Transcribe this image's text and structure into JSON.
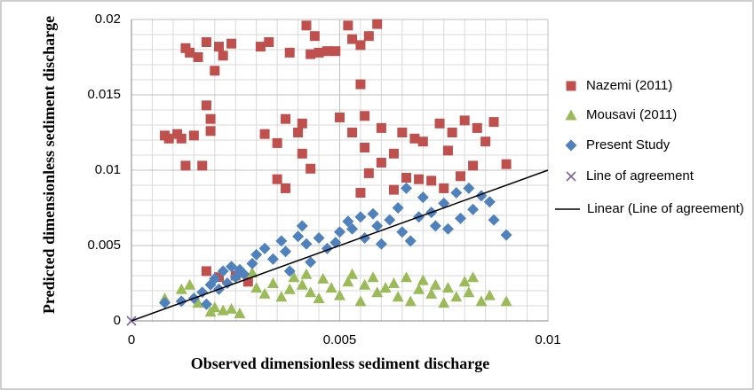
{
  "chart_data": {
    "type": "scatter",
    "x_label": "Observed dimensionless sediment discharge",
    "y_label": "Predicted dimensionless sediment discharge",
    "xlim": [
      0,
      0.01
    ],
    "ylim": [
      0,
      0.02
    ],
    "xticks": [
      0,
      0.005,
      0.01
    ],
    "yticks": [
      0,
      0.005,
      0.01,
      0.015,
      0.02
    ],
    "grid": true,
    "legend": "right",
    "series": [
      {
        "name": "Nazemi (2011)",
        "color": "#c0504d",
        "marker": "square",
        "x": [
          0.0008,
          0.0009,
          0.0011,
          0.0012,
          0.0013,
          0.0014,
          0.0013,
          0.0015,
          0.0016,
          0.0017,
          0.0018,
          0.0018,
          0.0019,
          0.0019,
          0.002,
          0.0021,
          0.0022,
          0.0024,
          0.0031,
          0.0032,
          0.0033,
          0.0035,
          0.0037,
          0.0037,
          0.0038,
          0.0035,
          0.004,
          0.0041,
          0.0041,
          0.0042,
          0.0043,
          0.0044,
          0.0043,
          0.0045,
          0.0047,
          0.0049,
          0.005,
          0.0052,
          0.0053,
          0.0053,
          0.0055,
          0.0055,
          0.0056,
          0.0056,
          0.0057,
          0.0057,
          0.0055,
          0.0059,
          0.006,
          0.006,
          0.0063,
          0.0063,
          0.0065,
          0.0066,
          0.0068,
          0.0069,
          0.007,
          0.0072,
          0.0074,
          0.0075,
          0.0076,
          0.0077,
          0.0079,
          0.008,
          0.0082,
          0.0083,
          0.0085,
          0.0087,
          0.009,
          0.0018,
          0.0021,
          0.0025,
          0.0028
        ],
        "values": [
          0.0123,
          0.0121,
          0.0124,
          0.0121,
          0.0181,
          0.0178,
          0.0103,
          0.0123,
          0.0175,
          0.0103,
          0.0185,
          0.0143,
          0.0134,
          0.0126,
          0.0166,
          0.0182,
          0.0176,
          0.0184,
          0.0182,
          0.0124,
          0.0185,
          0.0118,
          0.0134,
          0.0088,
          0.0178,
          0.0094,
          0.0125,
          0.0131,
          0.0111,
          0.0196,
          0.0177,
          0.0189,
          0.0101,
          0.0178,
          0.0179,
          0.0179,
          0.0135,
          0.0196,
          0.0187,
          0.0125,
          0.0183,
          0.0157,
          0.0136,
          0.0115,
          0.0189,
          0.0098,
          0.0085,
          0.0197,
          0.0128,
          0.0105,
          0.0087,
          0.0111,
          0.0125,
          0.0095,
          0.0121,
          0.0094,
          0.0119,
          0.0093,
          0.0131,
          0.0088,
          0.0113,
          0.0125,
          0.0096,
          0.0133,
          0.0103,
          0.0128,
          0.0119,
          0.0132,
          0.0104,
          0.0033,
          0.0029,
          0.003,
          0.0026
        ]
      },
      {
        "name": "Mousavi (2011)",
        "color": "#9bbb59",
        "marker": "triangle",
        "x": [
          0.0008,
          0.0012,
          0.0014,
          0.0016,
          0.0019,
          0.002,
          0.0022,
          0.0024,
          0.0026,
          0.0029,
          0.003,
          0.0032,
          0.0034,
          0.0036,
          0.0038,
          0.0039,
          0.0041,
          0.0042,
          0.0043,
          0.0045,
          0.0046,
          0.0048,
          0.005,
          0.0052,
          0.0053,
          0.0055,
          0.0056,
          0.0058,
          0.0059,
          0.0061,
          0.0063,
          0.0064,
          0.0066,
          0.0067,
          0.0069,
          0.007,
          0.0072,
          0.0073,
          0.0075,
          0.0076,
          0.0078,
          0.008,
          0.0081,
          0.0082,
          0.0084,
          0.0086,
          0.009
        ],
        "values": [
          0.0015,
          0.0021,
          0.0024,
          0.0012,
          0.0006,
          0.0009,
          0.0007,
          0.0008,
          0.0005,
          0.0032,
          0.0022,
          0.0018,
          0.0025,
          0.0016,
          0.0021,
          0.0029,
          0.0024,
          0.0031,
          0.0019,
          0.0015,
          0.0028,
          0.0022,
          0.0017,
          0.0026,
          0.0031,
          0.0013,
          0.0024,
          0.0029,
          0.0019,
          0.0022,
          0.0025,
          0.0016,
          0.0029,
          0.0013,
          0.0021,
          0.0027,
          0.0018,
          0.0024,
          0.0012,
          0.0022,
          0.0016,
          0.0026,
          0.0019,
          0.0029,
          0.0013,
          0.0017,
          0.0013
        ]
      },
      {
        "name": "Present Study",
        "color": "#4f81bd",
        "marker": "diamond",
        "x": [
          0.0008,
          0.0012,
          0.0015,
          0.0017,
          0.0018,
          0.0019,
          0.002,
          0.0021,
          0.0022,
          0.0023,
          0.0024,
          0.0025,
          0.0026,
          0.0027,
          0.0029,
          0.003,
          0.0032,
          0.0034,
          0.0036,
          0.0037,
          0.0038,
          0.004,
          0.0041,
          0.0042,
          0.0043,
          0.0045,
          0.0047,
          0.0049,
          0.005,
          0.0052,
          0.0053,
          0.0055,
          0.0056,
          0.0058,
          0.0059,
          0.006,
          0.0062,
          0.0064,
          0.0065,
          0.0066,
          0.0067,
          0.0069,
          0.007,
          0.0072,
          0.0073,
          0.0075,
          0.0076,
          0.0078,
          0.0079,
          0.0081,
          0.0082,
          0.0084,
          0.0086,
          0.0087,
          0.009
        ],
        "values": [
          0.0012,
          0.0013,
          0.0015,
          0.0019,
          0.0011,
          0.0024,
          0.0028,
          0.0021,
          0.0033,
          0.0025,
          0.0036,
          0.0029,
          0.0034,
          0.0031,
          0.0038,
          0.0044,
          0.0048,
          0.0041,
          0.0053,
          0.0046,
          0.0033,
          0.0056,
          0.0063,
          0.0051,
          0.0039,
          0.0055,
          0.0048,
          0.0052,
          0.0059,
          0.0066,
          0.0061,
          0.0069,
          0.0055,
          0.0071,
          0.0063,
          0.0051,
          0.0067,
          0.0075,
          0.0059,
          0.0088,
          0.0053,
          0.0069,
          0.0082,
          0.0072,
          0.0063,
          0.0078,
          0.0061,
          0.0085,
          0.0068,
          0.0088,
          0.0074,
          0.0083,
          0.0079,
          0.0067,
          0.0057
        ]
      },
      {
        "name": "Line of agreement",
        "color": "#8064a2",
        "marker": "x",
        "x": [
          0
        ],
        "values": [
          0
        ]
      },
      {
        "name": "Linear (Line of agreement)",
        "color": "#000000",
        "marker": "line",
        "x": [
          0,
          0.01
        ],
        "values": [
          0,
          0.01
        ]
      }
    ]
  }
}
